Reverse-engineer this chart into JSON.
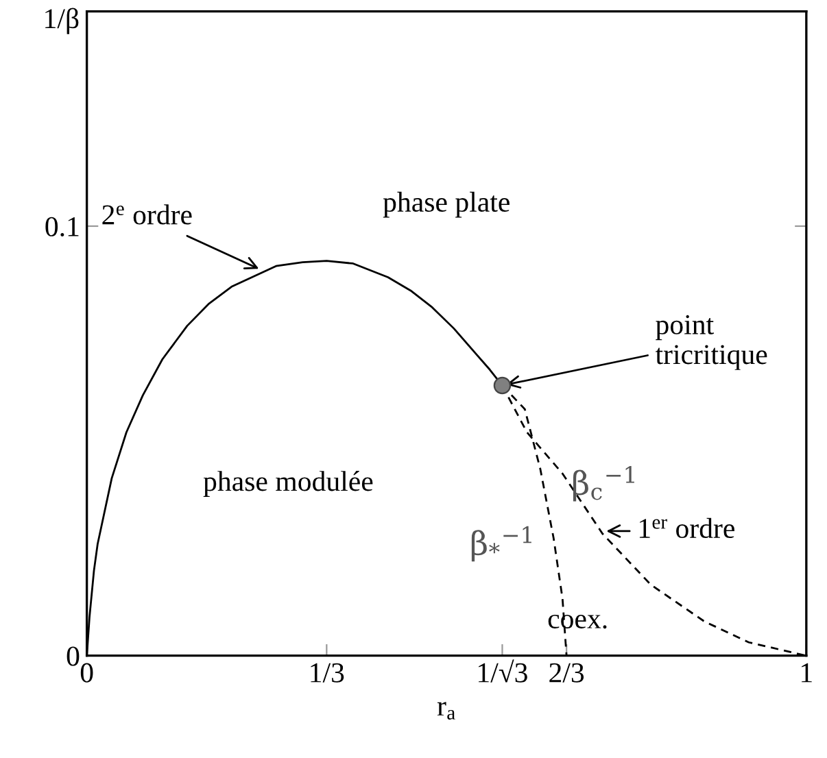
{
  "chart_data": {
    "type": "line",
    "xlabel": "r$_{a}$",
    "ylabel": "1/β",
    "xlim": [
      0,
      1
    ],
    "ylim": [
      0,
      0.15
    ],
    "xticks": [
      0,
      {
        "value": 0.3333,
        "label": "1/3"
      },
      {
        "value": 0.5774,
        "label": "1/√3"
      },
      {
        "value": 0.6667,
        "label": "2/3"
      },
      1
    ],
    "yticks": [
      0,
      0.1
    ],
    "grid": false,
    "legend": false,
    "series": [
      {
        "color": "#000000",
        "line_style": "solid",
        "marker": "none",
        "x": [
          0,
          0.0037,
          0.0099,
          0.015,
          0.0346,
          0.055,
          0.0778,
          0.105,
          0.1395,
          0.17,
          0.2012,
          0.263,
          0.3,
          0.3333,
          0.37,
          0.4185,
          0.45,
          0.48,
          0.51,
          0.5407,
          0.56,
          0.5774
        ],
        "values": [
          0,
          0.009,
          0.0198,
          0.026,
          0.0413,
          0.052,
          0.0606,
          0.069,
          0.0768,
          0.082,
          0.0859,
          0.0907,
          0.0916,
          0.0919,
          0.0913,
          0.0881,
          0.085,
          0.0811,
          0.0762,
          0.0703,
          0.0666,
          0.0629
        ]
      },
      {
        "color": "#000000",
        "line_style": "dashed",
        "marker": "none",
        "x": [
          0.5774,
          0.6087,
          0.6302,
          0.6488,
          0.6611,
          0.6667
        ],
        "values": [
          0.0629,
          0.0574,
          0.0435,
          0.0273,
          0.0133,
          0
        ]
      },
      {
        "color": "#000000",
        "line_style": "dashed",
        "marker": "none",
        "x": [
          0.5774,
          0.6117,
          0.6611,
          0.7167,
          0.784,
          0.858,
          0.92,
          1.0
        ],
        "values": [
          0.0629,
          0.052,
          0.0424,
          0.0284,
          0.0165,
          0.008,
          0.0031,
          0
        ]
      },
      {
        "type": "scatter",
        "color": "#808080",
        "marker": "circle",
        "x": [
          0.5774
        ],
        "values": [
          0.0629
        ]
      }
    ],
    "annotations": [
      {
        "text": "2$^{e}$ ordre",
        "x": 0.244,
        "y": 0.0897
      },
      {
        "text": "point\ntricritique",
        "x": 0.5774,
        "y": 0.0629
      },
      {
        "text": "1$^{er}$ ordre",
        "x": 0.7167,
        "y": 0.029
      },
      "phase plate",
      "phase modulée",
      "coex.",
      "β$_{*}$$^{−1}$",
      "β$_{c}$$^{−1}$"
    ]
  }
}
